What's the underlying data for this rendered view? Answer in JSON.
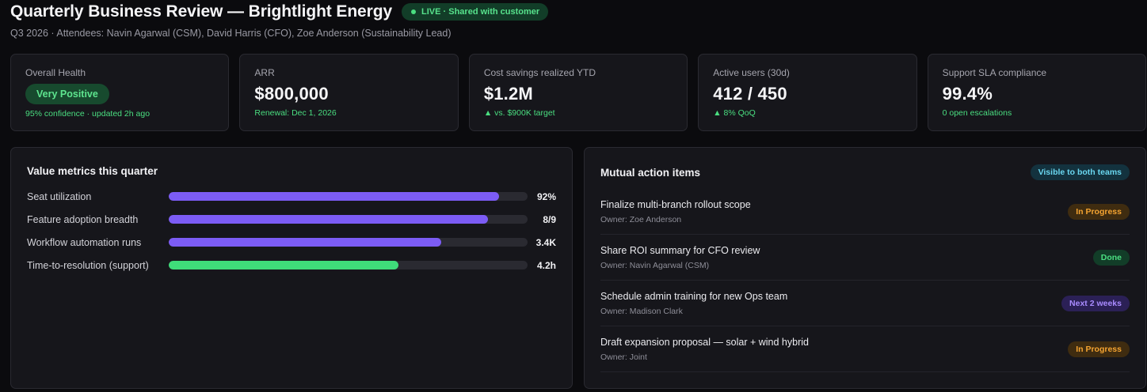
{
  "header": {
    "title": "Quarterly Business Review — Brightlight Energy",
    "live_badge": "LIVE · Shared with customer",
    "subtitle": "Q3 2026 · Attendees: Navin Agarwal (CSM), David Harris (CFO), Zoe Anderson (Sustainability Lead)"
  },
  "kpis": {
    "health": {
      "label": "Overall Health",
      "value": "Very Positive",
      "sub": "95% confidence · updated 2h ago"
    },
    "arr": {
      "label": "ARR",
      "value": "$800,000",
      "sub": "Renewal: Dec 1, 2026"
    },
    "savings": {
      "label": "Cost savings realized YTD",
      "value": "$1.2M",
      "sub": "▲ vs. $900K target"
    },
    "users": {
      "label": "Active users (30d)",
      "value": "412 / 450",
      "sub": "▲ 8% QoQ"
    },
    "sla": {
      "label": "Support SLA compliance",
      "value": "99.4%",
      "sub": "0 open escalations"
    }
  },
  "value_metrics": {
    "title": "Value metrics this quarter",
    "rows": [
      {
        "label": "Seat utilization",
        "value": "92%",
        "fill": 0.92,
        "color": "#7c5cf5"
      },
      {
        "label": "Feature adoption breadth",
        "value": "8/9",
        "fill": 0.89,
        "color": "#7c5cf5"
      },
      {
        "label": "Workflow automation runs",
        "value": "3.4K",
        "fill": 0.76,
        "color": "#7c5cf5"
      },
      {
        "label": "Time-to-resolution (support)",
        "value": "4.2h",
        "fill": 0.64,
        "color": "#3fdc7a"
      }
    ]
  },
  "actions": {
    "title": "Mutual action items",
    "visibility_badge": "Visible to both teams",
    "items": [
      {
        "title": "Finalize multi-branch rollout scope",
        "owner": "Owner: Zoe Anderson",
        "status": "In Progress"
      },
      {
        "title": "Share ROI summary for CFO review",
        "owner": "Owner: Navin Agarwal (CSM)",
        "status": "Done"
      },
      {
        "title": "Schedule admin training for new Ops team",
        "owner": "Owner: Madison Clark",
        "status": "Next 2 weeks"
      },
      {
        "title": "Draft expansion proposal — solar + wind hybrid",
        "owner": "Owner: Joint",
        "status": "In Progress"
      }
    ]
  }
}
